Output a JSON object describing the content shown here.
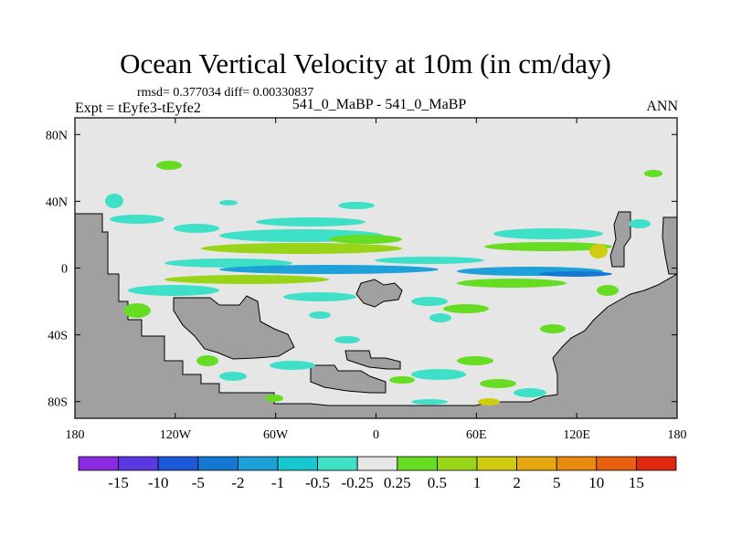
{
  "title": "Ocean Vertical Velocity at 10m (in cm/day)",
  "stats": "rmsd= 0.377034 diff= 0.00330837",
  "left_label": "Expt = tEyfe3-tEyfe2",
  "center_label": "541_0_MaBP - 541_0_MaBP",
  "right_label": "ANN",
  "chart_data": {
    "type": "contour-map",
    "variable": "Ocean Vertical Velocity at 10m",
    "units": "cm/day",
    "xlim": [
      -180,
      180
    ],
    "ylim": [
      -90,
      90
    ],
    "x_ticks": [
      {
        "value": -180,
        "label": "180"
      },
      {
        "value": -120,
        "label": "120W"
      },
      {
        "value": -60,
        "label": "60W"
      },
      {
        "value": 0,
        "label": "0"
      },
      {
        "value": 60,
        "label": "60E"
      },
      {
        "value": 120,
        "label": "120E"
      },
      {
        "value": 180,
        "label": "180"
      }
    ],
    "y_ticks": [
      {
        "value": 80,
        "label": "80N"
      },
      {
        "value": 40,
        "label": "40N"
      },
      {
        "value": 0,
        "label": "0"
      },
      {
        "value": -40,
        "label": "40S"
      },
      {
        "value": -80,
        "label": "80S"
      }
    ],
    "colorbar": {
      "colors": [
        "#8a2be2",
        "#5a3ae0",
        "#1e5ad8",
        "#1478d2",
        "#1ea0d8",
        "#18c8d0",
        "#3ee0c8",
        "#e6e6e6",
        "#66dd22",
        "#99d418",
        "#d2cc10",
        "#e6a812",
        "#e88a10",
        "#e86010",
        "#e02810"
      ],
      "labels": [
        "-15",
        "-10",
        "-5",
        "-2",
        "-1",
        "-0.5",
        "-0.25",
        "0.25",
        "0.5",
        "1",
        "2",
        "5",
        "10",
        "15"
      ]
    },
    "land_color": "#a0a0a0",
    "ocean_background": "#e6e6e6"
  }
}
